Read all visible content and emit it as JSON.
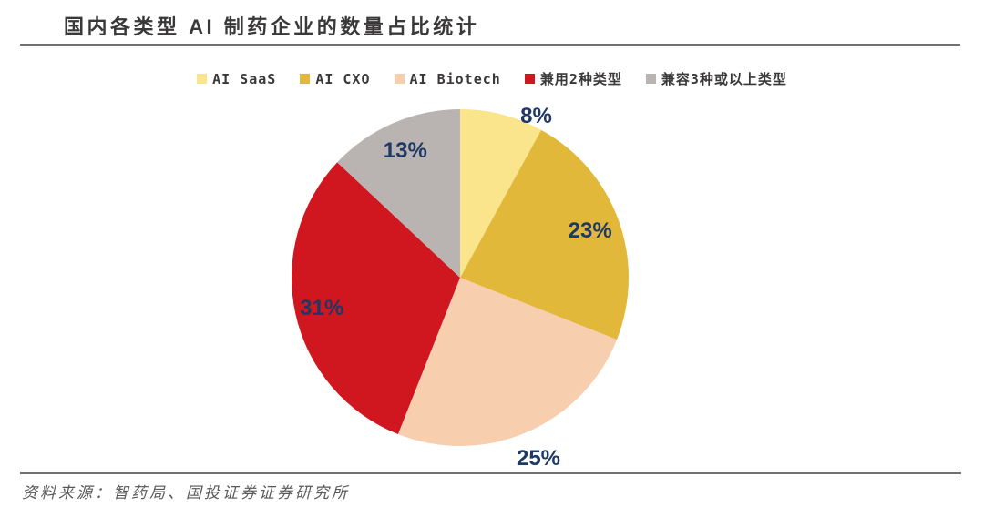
{
  "header": {
    "title": "国内各类型 AI 制药企业的数量占比统计"
  },
  "footer": {
    "source": "资料来源：智药局、国投证券证券研究所"
  },
  "chart_data": {
    "type": "pie",
    "title": "国内各类型 AI 制药企业的数量占比统计",
    "categories": [
      "AI SaaS",
      "AI CXO",
      "AI Biotech",
      "兼用2种类型",
      "兼容3种或以上类型"
    ],
    "values": [
      8,
      23,
      25,
      31,
      13
    ],
    "labels": [
      "8%",
      "23%",
      "25%",
      "31%",
      "13%"
    ],
    "colors": [
      "#FAE48C",
      "#E2B83B",
      "#F7CEAE",
      "#D0161F",
      "#B9B4B2"
    ],
    "label_color": "#1F3864",
    "legend_position": "top",
    "start_angle_deg": 0,
    "direction": "clockwise",
    "label_layout": [
      {
        "angle_deg": 25.2,
        "radius_frac": 1.06
      },
      {
        "angle_deg": 70.2,
        "radius_frac": 0.82
      },
      {
        "angle_deg": 156.6,
        "radius_frac": 1.17
      },
      {
        "angle_deg": 257.4,
        "radius_frac": 0.84
      },
      {
        "angle_deg": 336.6,
        "radius_frac": 0.82
      }
    ]
  }
}
